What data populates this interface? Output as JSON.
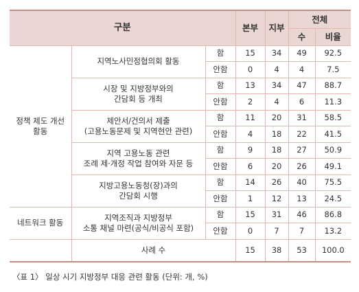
{
  "header": {
    "category": "구분",
    "hq": "본부",
    "branch": "지부",
    "total": "전체",
    "count": "수",
    "ratio": "비율"
  },
  "groups": [
    {
      "name": "정책 제도 개선\n활동",
      "items": [
        {
          "label": "지역노사민정협의회 활동",
          "rows": [
            {
              "sub": "함",
              "hq": "15",
              "branch": "34",
              "count": "49",
              "ratio": "92.5"
            },
            {
              "sub": "안함",
              "hq": "0",
              "branch": "4",
              "count": "4",
              "ratio": "7.5"
            }
          ]
        },
        {
          "label": "시장 및 지방정부와의\n간담회 등 개최",
          "rows": [
            {
              "sub": "함",
              "hq": "13",
              "branch": "34",
              "count": "47",
              "ratio": "88.7"
            },
            {
              "sub": "안함",
              "hq": "2",
              "branch": "4",
              "count": "6",
              "ratio": "11.3"
            }
          ]
        },
        {
          "label": "제안서/건의서 제출\n(고용노동문제 및 지역현안 관련)",
          "rows": [
            {
              "sub": "함",
              "hq": "11",
              "branch": "20",
              "count": "31",
              "ratio": "58.5"
            },
            {
              "sub": "안함",
              "hq": "4",
              "branch": "18",
              "count": "22",
              "ratio": "41.5"
            }
          ]
        },
        {
          "label": "지역 고용노동 관련\n조례 제·개정 작업 참여와 자문 등",
          "rows": [
            {
              "sub": "함",
              "hq": "9",
              "branch": "18",
              "count": "27",
              "ratio": "50.9"
            },
            {
              "sub": "안함",
              "hq": "6",
              "branch": "20",
              "count": "26",
              "ratio": "49.1"
            }
          ]
        },
        {
          "label": "지방고용노동청(장)과의\n간담회 시행",
          "rows": [
            {
              "sub": "함",
              "hq": "14",
              "branch": "26",
              "count": "40",
              "ratio": "75.5"
            },
            {
              "sub": "안함",
              "hq": "1",
              "branch": "12",
              "count": "13",
              "ratio": "24.5"
            }
          ]
        }
      ]
    },
    {
      "name": "네트워크 활동",
      "items": [
        {
          "label": "지역조직과 지방정부\n소통 채널 마련(공식/비공식 포함)",
          "rows": [
            {
              "sub": "함",
              "hq": "15",
              "branch": "31",
              "count": "46",
              "ratio": "86.8"
            },
            {
              "sub": "안함",
              "hq": "0",
              "branch": "7",
              "count": "7",
              "ratio": "13.2"
            }
          ]
        }
      ]
    }
  ],
  "total_row": {
    "label": "사례 수",
    "hq": "15",
    "branch": "38",
    "count": "53",
    "ratio": "100.0"
  },
  "caption": "〈표 1〉 일상 시기 지방정부 대응 관련 활동 (단위: 개, %)"
}
